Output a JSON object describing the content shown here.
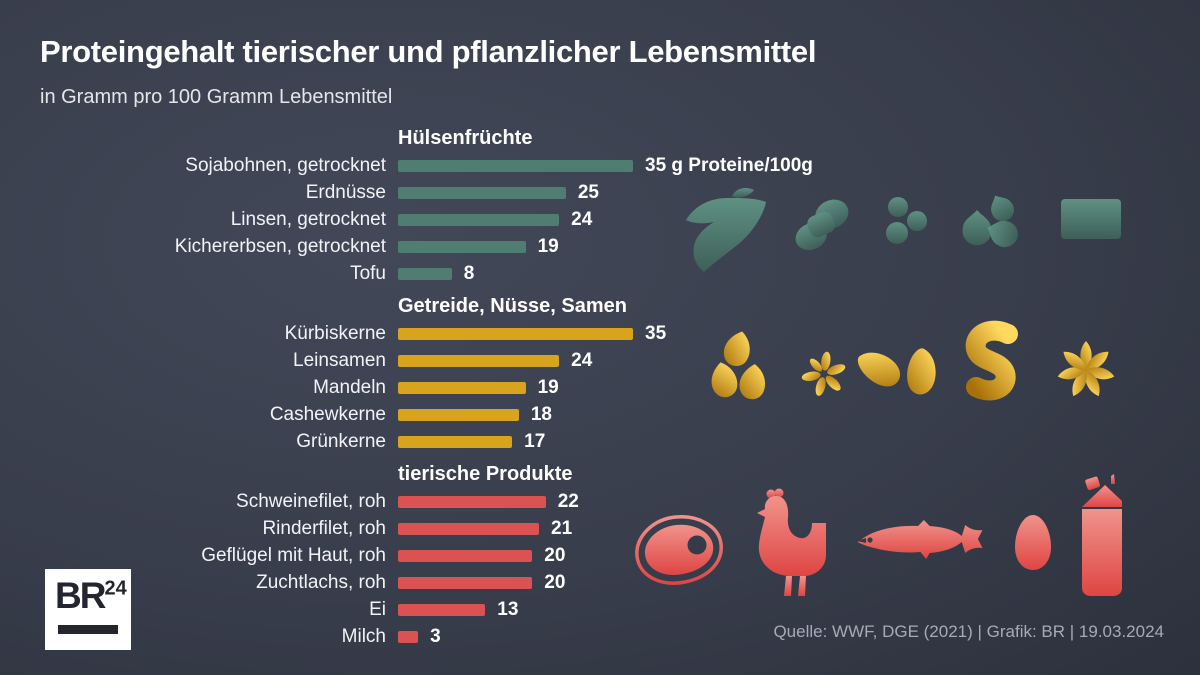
{
  "header": {
    "title": "Proteingehalt tierischer und pflanzlicher Lebensmittel",
    "subtitle": "in Gramm pro 100 Gramm Lebensmittel"
  },
  "logo": {
    "main": "BR",
    "sup": "24"
  },
  "footer": {
    "source": "Quelle: WWF, DGE (2021) | Grafik: BR | 19.03.2024"
  },
  "colors": {
    "background": "#363c4a",
    "legumes": "#4f7d72",
    "grains": "#d8a31d",
    "animal": "#da5251",
    "text": "#ffffff",
    "source_text": "#a6aab6"
  },
  "chart_data": {
    "type": "bar",
    "orientation": "horizontal",
    "unit": "g Proteine/100g",
    "xlim": [
      0,
      35
    ],
    "grid": false,
    "legend": false,
    "sections": [
      {
        "title": "Hülsenfrüchte",
        "color": "#4f7d72",
        "icons": [
          "soybean-pod-icon",
          "peanut-icon",
          "lentils-icon",
          "chickpeas-icon",
          "tofu-icon"
        ],
        "items": [
          {
            "label": "Sojabohnen, getrocknet",
            "value": 35,
            "display": "35 g Proteine/100g"
          },
          {
            "label": "Erdnüsse",
            "value": 25,
            "display": "25"
          },
          {
            "label": "Linsen, getrocknet",
            "value": 24,
            "display": "24"
          },
          {
            "label": "Kichererbsen, getrocknet",
            "value": 19,
            "display": "19"
          },
          {
            "label": "Tofu",
            "value": 8,
            "display": "8"
          }
        ]
      },
      {
        "title": "Getreide, Nüsse, Samen",
        "color": "#d8a31d",
        "icons": [
          "pumpkin-seeds-icon",
          "flax-seeds-icon",
          "almonds-icon",
          "cashew-icon",
          "green-spelt-icon"
        ],
        "items": [
          {
            "label": "Kürbiskerne",
            "value": 35,
            "display": "35"
          },
          {
            "label": "Leinsamen",
            "value": 24,
            "display": "24"
          },
          {
            "label": "Mandeln",
            "value": 19,
            "display": "19"
          },
          {
            "label": "Cashewkerne",
            "value": 18,
            "display": "18"
          },
          {
            "label": "Grünkerne",
            "value": 17,
            "display": "17"
          }
        ]
      },
      {
        "title": "tierische Produkte",
        "color": "#da5251",
        "icons": [
          "steak-icon",
          "chicken-icon",
          "fish-icon",
          "egg-icon",
          "milk-carton-icon"
        ],
        "items": [
          {
            "label": "Schweinefilet, roh",
            "value": 22,
            "display": "22"
          },
          {
            "label": "Rinderfilet, roh",
            "value": 21,
            "display": "21"
          },
          {
            "label": "Geflügel mit Haut, roh",
            "value": 20,
            "display": "20"
          },
          {
            "label": "Zuchtlachs, roh",
            "value": 20,
            "display": "20"
          },
          {
            "label": "Ei",
            "value": 13,
            "display": "13"
          },
          {
            "label": "Milch",
            "value": 3,
            "display": "3"
          }
        ]
      }
    ]
  }
}
